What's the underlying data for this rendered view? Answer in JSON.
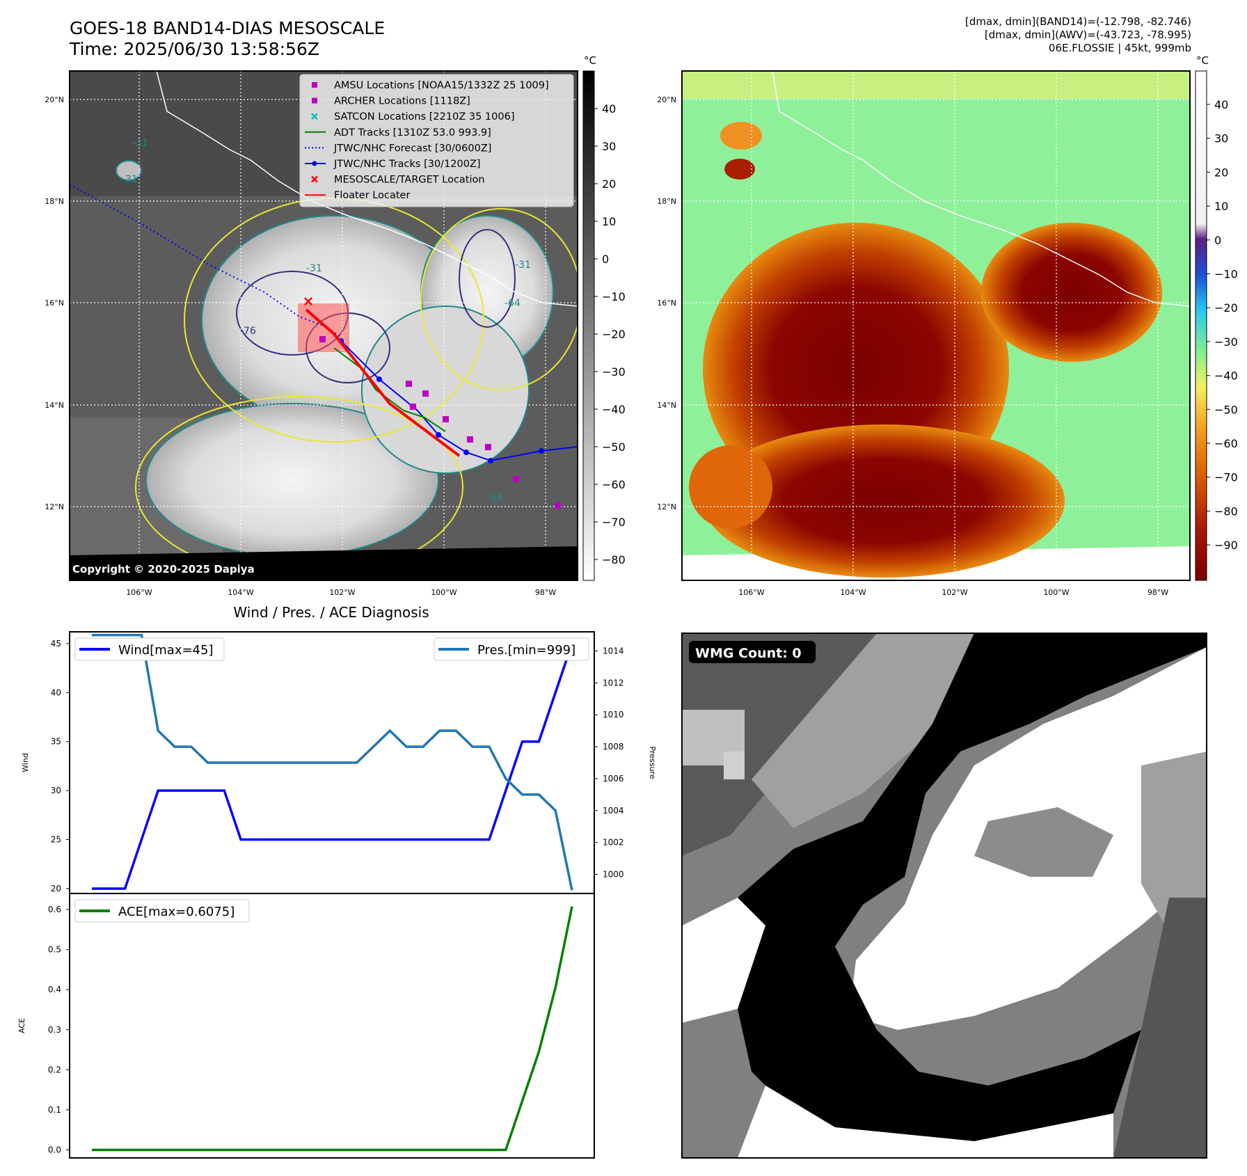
{
  "header": {
    "title_line1": "GOES-18 BAND14-DIAS MESOSCALE",
    "title_line2": "Time: 2025/06/30 13:58:56Z",
    "info_line1": "[dmax, dmin](BAND14)=(-12.798, -82.746)",
    "info_line2": "[dmax, dmin](AWV)=(-43.723, -78.995)",
    "info_line3": "06E.FLOSSIE | 45kt, 999mb"
  },
  "map": {
    "lat_labels": [
      "20°N",
      "18°N",
      "16°N",
      "14°N",
      "12°N"
    ],
    "lon_labels": [
      "106°W",
      "104°W",
      "102°W",
      "100°W",
      "98°W"
    ],
    "copyright": "Copyright © 2020-2025 Dapiya",
    "legend": [
      {
        "label": "AMSU Locations [NOAA15/1332Z 25 1009]",
        "marker": "square",
        "color": "#c000c0"
      },
      {
        "label": "ARCHER Locations [1118Z]",
        "marker": "square",
        "color": "#c000c0"
      },
      {
        "label": "SATCON Locations [2210Z 35 1006]",
        "marker": "x",
        "color": "#00bfbf"
      },
      {
        "label": "ADT Tracks [1310Z 53.0 993.9]",
        "marker": "line",
        "color": "#008000"
      },
      {
        "label": "JTWC/NHC Forecast [30/0600Z]",
        "marker": "dotted",
        "color": "#0000ff"
      },
      {
        "label": "JTWC/NHC Tracks [30/1200Z]",
        "marker": "line-dot",
        "color": "#0000ff"
      },
      {
        "label": "MESOSCALE/TARGET Location",
        "marker": "x",
        "color": "#ff0000"
      },
      {
        "label": "Floater Locater",
        "marker": "line",
        "color": "#ff0000"
      }
    ],
    "contour_labels": [
      "-31",
      "-31",
      "-31",
      "-64",
      "-76",
      "-54",
      "-31"
    ]
  },
  "colorbar_gray": {
    "unit": "°C",
    "ticks": [
      "40",
      "30",
      "20",
      "10",
      "0",
      "−10",
      "−20",
      "−30",
      "−40",
      "−50",
      "−60",
      "−70",
      "−80"
    ]
  },
  "colorbar_color": {
    "unit": "°C",
    "ticks": [
      "40",
      "30",
      "20",
      "10",
      "0",
      "−10",
      "−20",
      "−30",
      "−40",
      "−50",
      "−60",
      "−70",
      "−80",
      "−90"
    ]
  },
  "wmg": {
    "label": "WMG Count: 0"
  },
  "chart_data": [
    {
      "type": "line",
      "title": "Wind / Pres. / ACE Diagnosis",
      "ylabel": "Wind",
      "ylabel_right": "Pressure",
      "yticks_left": [
        "20",
        "25",
        "30",
        "35",
        "40",
        "45"
      ],
      "yticks_right": [
        "1000",
        "1002",
        "1004",
        "1006",
        "1008",
        "1010",
        "1012",
        "1014"
      ],
      "ylim": [
        19.5,
        46.2
      ],
      "ylim_right": [
        998.8,
        1015.2
      ],
      "x": [
        0,
        1,
        2,
        3,
        4,
        5,
        6,
        7,
        8,
        9,
        10,
        11,
        12,
        13,
        14,
        15,
        16,
        17,
        18,
        19,
        20,
        21,
        22,
        23,
        24,
        25,
        26,
        27,
        28,
        29
      ],
      "series": [
        {
          "name": "Wind[max=45]",
          "axis": "left",
          "color": "#0000ff",
          "values": [
            20,
            20,
            20,
            25,
            30,
            30,
            30,
            30,
            30,
            25,
            25,
            25,
            25,
            25,
            25,
            25,
            25,
            25,
            25,
            25,
            25,
            25,
            25,
            25,
            25,
            30,
            35,
            35,
            40,
            45
          ]
        },
        {
          "name": "Pres.[min=999]",
          "axis": "right",
          "color": "#1f77b4",
          "values": [
            1015,
            1015,
            1015,
            1015,
            1009,
            1008,
            1008,
            1007,
            1007,
            1007,
            1007,
            1007,
            1007,
            1007,
            1007,
            1007,
            1007,
            1008,
            1009,
            1008,
            1008,
            1009,
            1009,
            1008,
            1008,
            1006,
            1005,
            1005,
            1004,
            999
          ]
        }
      ]
    },
    {
      "type": "line",
      "ylabel": "ACE",
      "yticks": [
        "0.0",
        "0.1",
        "0.2",
        "0.3",
        "0.4",
        "0.5",
        "0.6"
      ],
      "ylim": [
        -0.02,
        0.64
      ],
      "x": [
        0,
        1,
        2,
        3,
        4,
        5,
        6,
        7,
        8,
        9,
        10,
        11,
        12,
        13,
        14,
        15,
        16,
        17,
        18,
        19,
        20,
        21,
        22,
        23,
        24,
        25,
        26,
        27,
        28,
        29
      ],
      "series": [
        {
          "name": "ACE[max=0.6075]",
          "color": "#008000",
          "values": [
            0,
            0,
            0,
            0,
            0,
            0,
            0,
            0,
            0,
            0,
            0,
            0,
            0,
            0,
            0,
            0,
            0,
            0,
            0,
            0,
            0,
            0,
            0,
            0,
            0,
            0,
            0.1225,
            0.245,
            0.405,
            0.6075
          ]
        }
      ]
    }
  ]
}
